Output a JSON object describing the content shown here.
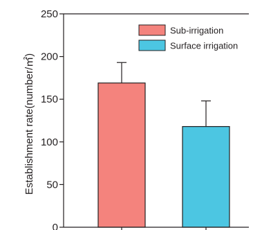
{
  "chart_data": {
    "type": "bar",
    "categories": [
      "Sub-irrigation",
      "Surface irrigation"
    ],
    "values": [
      169,
      118
    ],
    "errors": [
      24,
      30
    ],
    "colors": [
      "#f4837d",
      "#4cc6e2"
    ],
    "ylabel": "Establishment rate(number/㎡)",
    "xlabel": "",
    "title": "",
    "ylim": [
      0,
      250
    ],
    "yticks": [
      0,
      50,
      100,
      150,
      200,
      250
    ],
    "legend": {
      "position": "top-right",
      "entries": [
        {
          "label": "Sub-irrigation",
          "color": "#f4837d"
        },
        {
          "label": "Surface irrigation",
          "color": "#4cc6e2"
        }
      ]
    },
    "grid": false
  }
}
